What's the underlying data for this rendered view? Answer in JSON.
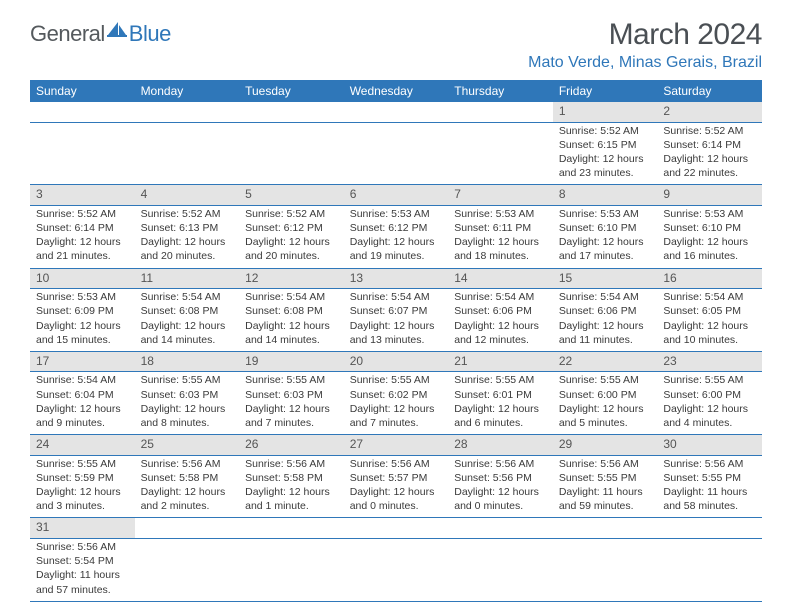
{
  "logo": {
    "text1": "General",
    "text2": "Blue",
    "sail_color": "#2f77b9"
  },
  "title": "March 2024",
  "location": "Mato Verde, Minas Gerais, Brazil",
  "colors": {
    "header_bg": "#2f77b9",
    "header_text": "#ffffff",
    "daynum_bg": "#e4e4e4",
    "row_divider": "#2f77b9",
    "body_text": "#3a3a3a",
    "title_text": "#4a4f54",
    "location_text": "#2f77b9"
  },
  "day_headers": [
    "Sunday",
    "Monday",
    "Tuesday",
    "Wednesday",
    "Thursday",
    "Friday",
    "Saturday"
  ],
  "weeks": [
    [
      null,
      null,
      null,
      null,
      null,
      {
        "n": "1",
        "sr": "5:52 AM",
        "ss": "6:15 PM",
        "dl": "12 hours and 23 minutes."
      },
      {
        "n": "2",
        "sr": "5:52 AM",
        "ss": "6:14 PM",
        "dl": "12 hours and 22 minutes."
      }
    ],
    [
      {
        "n": "3",
        "sr": "5:52 AM",
        "ss": "6:14 PM",
        "dl": "12 hours and 21 minutes."
      },
      {
        "n": "4",
        "sr": "5:52 AM",
        "ss": "6:13 PM",
        "dl": "12 hours and 20 minutes."
      },
      {
        "n": "5",
        "sr": "5:52 AM",
        "ss": "6:12 PM",
        "dl": "12 hours and 20 minutes."
      },
      {
        "n": "6",
        "sr": "5:53 AM",
        "ss": "6:12 PM",
        "dl": "12 hours and 19 minutes."
      },
      {
        "n": "7",
        "sr": "5:53 AM",
        "ss": "6:11 PM",
        "dl": "12 hours and 18 minutes."
      },
      {
        "n": "8",
        "sr": "5:53 AM",
        "ss": "6:10 PM",
        "dl": "12 hours and 17 minutes."
      },
      {
        "n": "9",
        "sr": "5:53 AM",
        "ss": "6:10 PM",
        "dl": "12 hours and 16 minutes."
      }
    ],
    [
      {
        "n": "10",
        "sr": "5:53 AM",
        "ss": "6:09 PM",
        "dl": "12 hours and 15 minutes."
      },
      {
        "n": "11",
        "sr": "5:54 AM",
        "ss": "6:08 PM",
        "dl": "12 hours and 14 minutes."
      },
      {
        "n": "12",
        "sr": "5:54 AM",
        "ss": "6:08 PM",
        "dl": "12 hours and 14 minutes."
      },
      {
        "n": "13",
        "sr": "5:54 AM",
        "ss": "6:07 PM",
        "dl": "12 hours and 13 minutes."
      },
      {
        "n": "14",
        "sr": "5:54 AM",
        "ss": "6:06 PM",
        "dl": "12 hours and 12 minutes."
      },
      {
        "n": "15",
        "sr": "5:54 AM",
        "ss": "6:06 PM",
        "dl": "12 hours and 11 minutes."
      },
      {
        "n": "16",
        "sr": "5:54 AM",
        "ss": "6:05 PM",
        "dl": "12 hours and 10 minutes."
      }
    ],
    [
      {
        "n": "17",
        "sr": "5:54 AM",
        "ss": "6:04 PM",
        "dl": "12 hours and 9 minutes."
      },
      {
        "n": "18",
        "sr": "5:55 AM",
        "ss": "6:03 PM",
        "dl": "12 hours and 8 minutes."
      },
      {
        "n": "19",
        "sr": "5:55 AM",
        "ss": "6:03 PM",
        "dl": "12 hours and 7 minutes."
      },
      {
        "n": "20",
        "sr": "5:55 AM",
        "ss": "6:02 PM",
        "dl": "12 hours and 7 minutes."
      },
      {
        "n": "21",
        "sr": "5:55 AM",
        "ss": "6:01 PM",
        "dl": "12 hours and 6 minutes."
      },
      {
        "n": "22",
        "sr": "5:55 AM",
        "ss": "6:00 PM",
        "dl": "12 hours and 5 minutes."
      },
      {
        "n": "23",
        "sr": "5:55 AM",
        "ss": "6:00 PM",
        "dl": "12 hours and 4 minutes."
      }
    ],
    [
      {
        "n": "24",
        "sr": "5:55 AM",
        "ss": "5:59 PM",
        "dl": "12 hours and 3 minutes."
      },
      {
        "n": "25",
        "sr": "5:56 AM",
        "ss": "5:58 PM",
        "dl": "12 hours and 2 minutes."
      },
      {
        "n": "26",
        "sr": "5:56 AM",
        "ss": "5:58 PM",
        "dl": "12 hours and 1 minute."
      },
      {
        "n": "27",
        "sr": "5:56 AM",
        "ss": "5:57 PM",
        "dl": "12 hours and 0 minutes."
      },
      {
        "n": "28",
        "sr": "5:56 AM",
        "ss": "5:56 PM",
        "dl": "12 hours and 0 minutes."
      },
      {
        "n": "29",
        "sr": "5:56 AM",
        "ss": "5:55 PM",
        "dl": "11 hours and 59 minutes."
      },
      {
        "n": "30",
        "sr": "5:56 AM",
        "ss": "5:55 PM",
        "dl": "11 hours and 58 minutes."
      }
    ],
    [
      {
        "n": "31",
        "sr": "5:56 AM",
        "ss": "5:54 PM",
        "dl": "11 hours and 57 minutes."
      },
      null,
      null,
      null,
      null,
      null,
      null
    ]
  ],
  "labels": {
    "sunrise": "Sunrise:",
    "sunset": "Sunset:",
    "daylight": "Daylight:"
  }
}
